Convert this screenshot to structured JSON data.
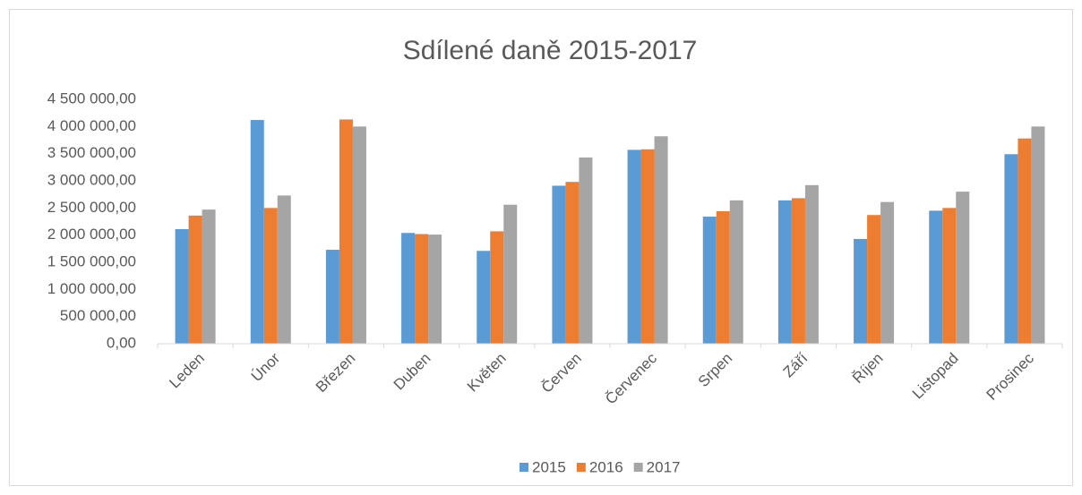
{
  "chart_data": {
    "type": "bar",
    "title": "Sdílené daně 2015-2017",
    "categories": [
      "Leden",
      "Únor",
      "Březen",
      "Duben",
      "Květen",
      "Červen",
      "Červenec",
      "Srpen",
      "Září",
      "Říjen",
      "Listopad",
      "Prosinec"
    ],
    "series": [
      {
        "name": "2015",
        "color": "#5b9bd5",
        "values": [
          2110000,
          4120000,
          1730000,
          2040000,
          1710000,
          2910000,
          3570000,
          2340000,
          2640000,
          1930000,
          2450000,
          3490000
        ]
      },
      {
        "name": "2016",
        "color": "#ed7d31",
        "values": [
          2360000,
          2500000,
          4130000,
          2020000,
          2070000,
          2980000,
          3580000,
          2440000,
          2680000,
          2370000,
          2500000,
          3780000
        ]
      },
      {
        "name": "2017",
        "color": "#a5a5a5",
        "values": [
          2470000,
          2730000,
          4000000,
          2010000,
          2560000,
          3430000,
          3820000,
          2640000,
          2920000,
          2610000,
          2800000,
          4000000
        ]
      }
    ],
    "ylim": [
      0,
      4500000
    ],
    "yticks": [
      {
        "value": 0,
        "label": "0,00"
      },
      {
        "value": 500000,
        "label": "500 000,00"
      },
      {
        "value": 1000000,
        "label": "1 000 000,00"
      },
      {
        "value": 1500000,
        "label": "1 500 000,00"
      },
      {
        "value": 2000000,
        "label": "2 000 000,00"
      },
      {
        "value": 2500000,
        "label": "2 500 000,00"
      },
      {
        "value": 3000000,
        "label": "3 000 000,00"
      },
      {
        "value": 3500000,
        "label": "3 500 000,00"
      },
      {
        "value": 4000000,
        "label": "4 000 000,00"
      },
      {
        "value": 4500000,
        "label": "4 500 000,00"
      }
    ],
    "grid": false,
    "legend": "bottom"
  }
}
